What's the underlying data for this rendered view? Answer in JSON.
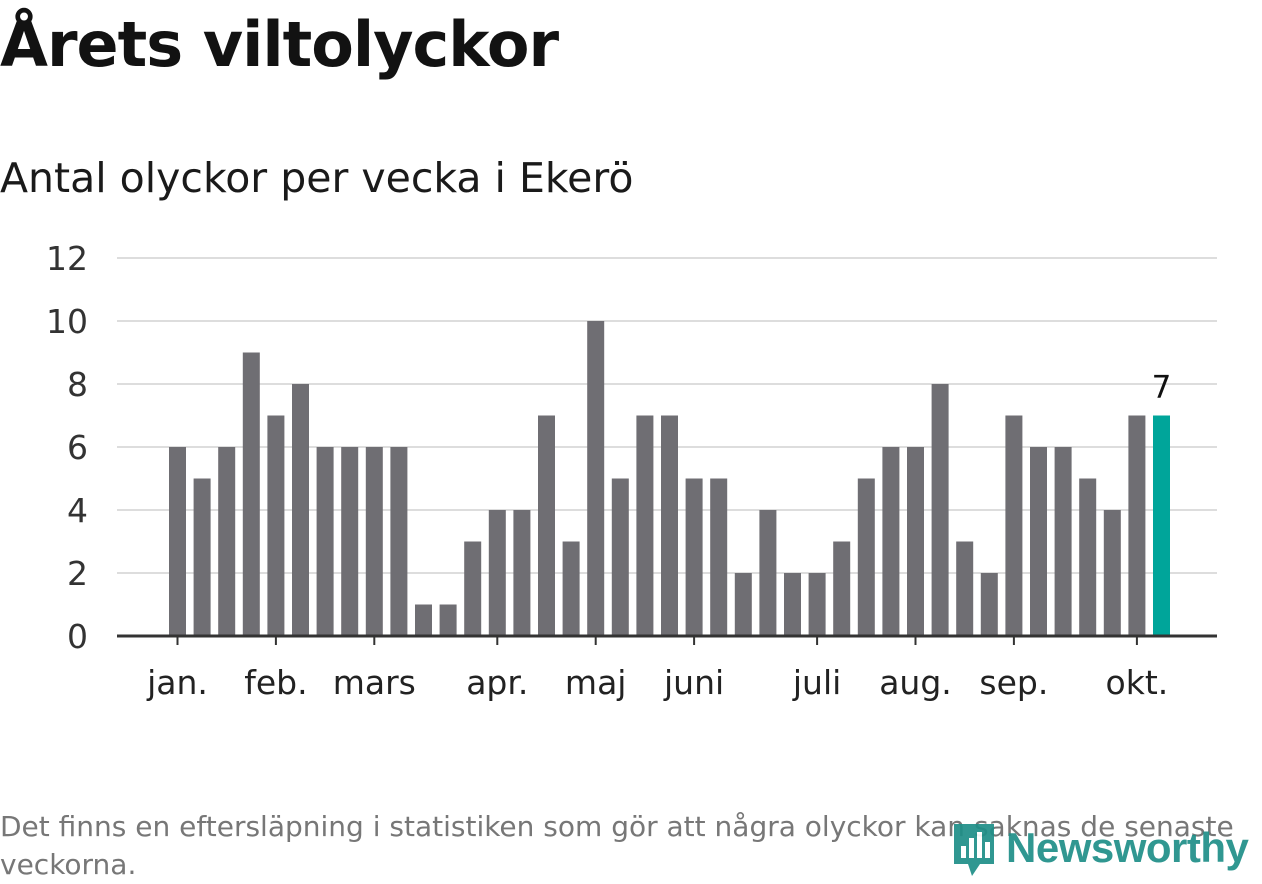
{
  "title": "Årets viltolyckor",
  "subtitle": "Antal olyckor per vecka i Ekerö",
  "footnote": "Det finns en eftersläpning i statistiken som gör att några olyckor kan saknas de senaste veckorna.",
  "brand": {
    "name": "Newsworthy",
    "icon": "newsworthy-logo-icon",
    "color": "#1f8f88"
  },
  "chart_data": {
    "type": "bar",
    "title": "",
    "xlabel": "",
    "ylabel": "",
    "ylim": [
      0,
      12
    ],
    "yticks": [
      "0",
      "2",
      "4",
      "6",
      "8",
      "10",
      "12"
    ],
    "grid": true,
    "month_labels": [
      {
        "label": "jan.",
        "week": 1
      },
      {
        "label": "feb.",
        "week": 5
      },
      {
        "label": "mars",
        "week": 9
      },
      {
        "label": "apr.",
        "week": 14
      },
      {
        "label": "maj",
        "week": 18
      },
      {
        "label": "juni",
        "week": 22
      },
      {
        "label": "juli",
        "week": 27
      },
      {
        "label": "aug.",
        "week": 31
      },
      {
        "label": "sep.",
        "week": 35
      },
      {
        "label": "okt.",
        "week": 40
      }
    ],
    "values": [
      6,
      5,
      6,
      9,
      7,
      8,
      6,
      6,
      6,
      6,
      1,
      1,
      3,
      4,
      4,
      7,
      3,
      10,
      5,
      7,
      7,
      5,
      5,
      2,
      4,
      2,
      2,
      3,
      5,
      6,
      6,
      8,
      3,
      2,
      7,
      6,
      6,
      5,
      4,
      7,
      7
    ],
    "highlight_last_label": "7",
    "colors": {
      "bar": "#6f6e73",
      "highlight": "#00a59a",
      "grid": "#dddddd",
      "axis": "#333333"
    }
  }
}
